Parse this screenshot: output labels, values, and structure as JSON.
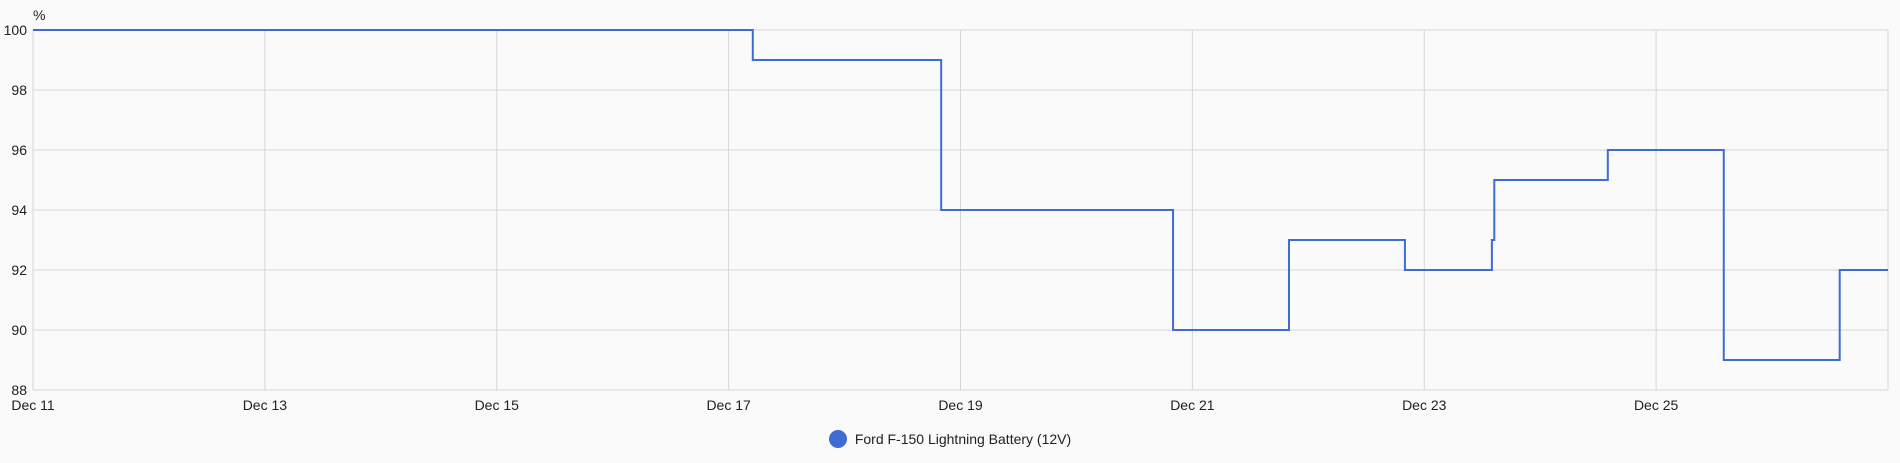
{
  "chart_data": {
    "type": "line",
    "step": true,
    "ylabel": "%",
    "xlabel": "",
    "ylim": [
      88,
      100
    ],
    "yticks": [
      100,
      98,
      96,
      94,
      92,
      90,
      88
    ],
    "xlim": [
      "2023-12-11T00:00",
      "2023-12-27T00:00"
    ],
    "xticks": [
      {
        "date": "2023-12-11T00:00",
        "label": "Dec 11"
      },
      {
        "date": "2023-12-13T00:00",
        "label": "Dec 13"
      },
      {
        "date": "2023-12-15T00:00",
        "label": "Dec 15"
      },
      {
        "date": "2023-12-17T00:00",
        "label": "Dec 17"
      },
      {
        "date": "2023-12-19T00:00",
        "label": "Dec 19"
      },
      {
        "date": "2023-12-21T00:00",
        "label": "Dec 21"
      },
      {
        "date": "2023-12-23T00:00",
        "label": "Dec 23"
      },
      {
        "date": "2023-12-25T00:00",
        "label": "Dec 25"
      }
    ],
    "grid": true,
    "legend_position": "bottom-center",
    "series": [
      {
        "name": "Ford F-150 Lightning Battery (12V)",
        "color": "#3f6bd4",
        "points": [
          {
            "x": "2023-12-11T00:00",
            "y": 100
          },
          {
            "x": "2023-12-17T05:00",
            "y": 99
          },
          {
            "x": "2023-12-18T20:00",
            "y": 94
          },
          {
            "x": "2023-12-20T20:00",
            "y": 90
          },
          {
            "x": "2023-12-21T20:00",
            "y": 93
          },
          {
            "x": "2023-12-22T20:00",
            "y": 92
          },
          {
            "x": "2023-12-23T14:00",
            "y": 93
          },
          {
            "x": "2023-12-23T14:30",
            "y": 95
          },
          {
            "x": "2023-12-24T14:00",
            "y": 96
          },
          {
            "x": "2023-12-25T14:00",
            "y": 89
          },
          {
            "x": "2023-12-26T14:00",
            "y": 92
          },
          {
            "x": "2023-12-27T00:00",
            "y": 92
          }
        ]
      }
    ]
  }
}
